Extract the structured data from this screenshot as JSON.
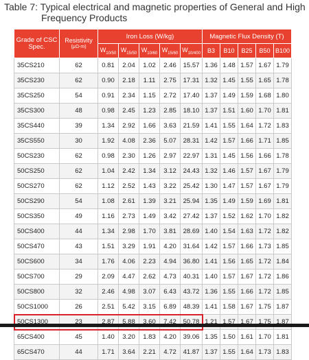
{
  "title_line1": "Table 7: Typical electrical and magnetic properties of General and High",
  "title_line2": "Frequency Products",
  "headers": {
    "grade": "Grade of CSC Spec.",
    "resistivity": "Resistivity",
    "resistivity_unit": "(μΩ-m)",
    "iron_loss": "Iron Loss (W/kg)",
    "flux": "Magnetic Flux Density (T)",
    "iron_sub": [
      "W",
      "W",
      "W",
      "W",
      "W"
    ],
    "iron_subscripts": [
      "10/50",
      "15/50",
      "10/60",
      "15/60",
      "10/400"
    ],
    "flux_sub": [
      "B3",
      "B10",
      "B25",
      "B50",
      "B100"
    ]
  },
  "highlight_row": "50CS1300",
  "rows": [
    [
      "35CS210",
      "62",
      "0.81",
      "2.04",
      "1.02",
      "2.46",
      "15.57",
      "1.36",
      "1.48",
      "1.57",
      "1.67",
      "1.79"
    ],
    [
      "35CS230",
      "62",
      "0.90",
      "2.18",
      "1.11",
      "2.75",
      "17.31",
      "1.32",
      "1.45",
      "1.55",
      "1.65",
      "1.78"
    ],
    [
      "35CS250",
      "54",
      "0.91",
      "2.34",
      "1.15",
      "2.72",
      "17.40",
      "1.37",
      "1.49",
      "1.59",
      "1.68",
      "1.80"
    ],
    [
      "35CS300",
      "48",
      "0.98",
      "2.45",
      "1.23",
      "2.85",
      "18.10",
      "1.37",
      "1.51",
      "1.60",
      "1.70",
      "1.81"
    ],
    [
      "35CS440",
      "39",
      "1.34",
      "2.92",
      "1.66",
      "3.63",
      "21.59",
      "1.41",
      "1.55",
      "1.64",
      "1.72",
      "1.83"
    ],
    [
      "35CS550",
      "30",
      "1.92",
      "4.08",
      "2.36",
      "5.07",
      "28.31",
      "1.42",
      "1.57",
      "1.66",
      "1.71",
      "1.85"
    ],
    [
      "50CS230",
      "62",
      "0.98",
      "2.30",
      "1.26",
      "2.97",
      "22.97",
      "1.31",
      "1.45",
      "1.56",
      "1.66",
      "1.78"
    ],
    [
      "50CS250",
      "62",
      "1.04",
      "2.42",
      "1.34",
      "3.12",
      "24.43",
      "1.32",
      "1.46",
      "1.57",
      "1.67",
      "1.79"
    ],
    [
      "50CS270",
      "62",
      "1.12",
      "2.52",
      "1.43",
      "3.22",
      "25.42",
      "1.30",
      "1.47",
      "1.57",
      "1.67",
      "1.79"
    ],
    [
      "50CS290",
      "54",
      "1.08",
      "2.61",
      "1.39",
      "3.21",
      "25.94",
      "1.35",
      "1.49",
      "1.59",
      "1.69",
      "1.81"
    ],
    [
      "50CS350",
      "49",
      "1.16",
      "2.73",
      "1.49",
      "3.42",
      "27.42",
      "1.37",
      "1.52",
      "1.62",
      "1.70",
      "1.82"
    ],
    [
      "50CS400",
      "44",
      "1.34",
      "2.98",
      "1.70",
      "3.81",
      "28.69",
      "1.40",
      "1.54",
      "1.63",
      "1.72",
      "1.82"
    ],
    [
      "50CS470",
      "43",
      "1.51",
      "3.29",
      "1.91",
      "4.20",
      "31.64",
      "1.42",
      "1.57",
      "1.66",
      "1.73",
      "1.85"
    ],
    [
      "50CS600",
      "34",
      "1.76",
      "4.06",
      "2.23",
      "4.94",
      "36.80",
      "1.41",
      "1.56",
      "1.65",
      "1.72",
      "1.84"
    ],
    [
      "50CS700",
      "29",
      "2.09",
      "4.47",
      "2.62",
      "4.73",
      "40.31",
      "1.40",
      "1.57",
      "1.67",
      "1.72",
      "1.86"
    ],
    [
      "50CS800",
      "32",
      "2.46",
      "4.98",
      "3.07",
      "6.43",
      "43.72",
      "1.36",
      "1.55",
      "1.66",
      "1.72",
      "1.85"
    ],
    [
      "50CS1000",
      "26",
      "2.51",
      "5.42",
      "3.15",
      "6.89",
      "48.39",
      "1.41",
      "1.58",
      "1.67",
      "1.75",
      "1.87"
    ],
    [
      "50CS1300",
      "23",
      "2.87",
      "5.88",
      "3.60",
      "7.42",
      "50.78",
      "1.21",
      "1.57",
      "1.67",
      "1.75",
      "1.87"
    ],
    [
      "65CS400",
      "45",
      "1.40",
      "3.20",
      "1.83",
      "4.20",
      "39.06",
      "1.35",
      "1.50",
      "1.61",
      "1.70",
      "1.81"
    ],
    [
      "65CS470",
      "44",
      "1.71",
      "3.64",
      "2.21",
      "4.72",
      "41.87",
      "1.37",
      "1.55",
      "1.64",
      "1.73",
      "1.83"
    ]
  ],
  "colors": {
    "header": "#e8412f",
    "highlight": "#d8202a",
    "stripe": "#f3f3f3"
  }
}
